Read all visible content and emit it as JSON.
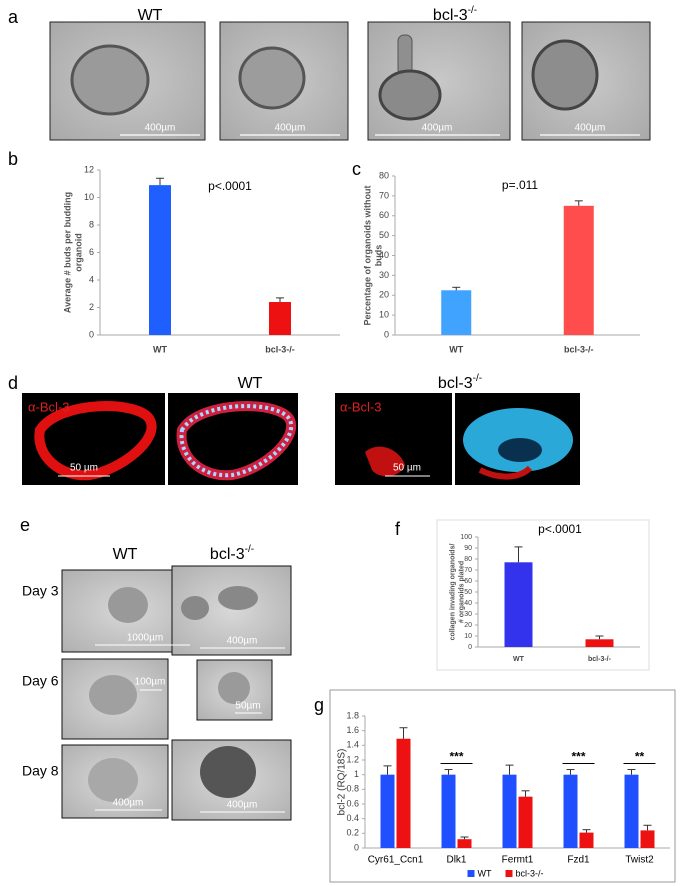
{
  "panel_labels": [
    "a",
    "b",
    "c",
    "d",
    "e",
    "f",
    "g"
  ],
  "panel_a": {
    "headings": [
      {
        "text": "WT"
      },
      {
        "text": "bcl-3",
        "sup": "-/-"
      }
    ],
    "scale_bars": [
      "400µm",
      "400µm",
      "400µm",
      "400µm"
    ]
  },
  "panel_d": {
    "headings": [
      {
        "text": "WT"
      },
      {
        "text": "bcl-3",
        "sup": "-/-"
      }
    ],
    "stain_labels": [
      "α-Bcl-3",
      "α-Bcl-3"
    ],
    "scale_bars": [
      "50 µm",
      "50 µm"
    ]
  },
  "panel_e": {
    "headings": [
      {
        "text": "WT"
      },
      {
        "text": "bcl-3",
        "sup": "-/-"
      }
    ],
    "days": [
      "Day 3",
      "Day 6",
      "Day 8"
    ],
    "scale_bars_wt": [
      "1000µm",
      "100µm",
      "400µm"
    ],
    "scale_bars_ko": [
      "400µm",
      "50µm",
      "400µm"
    ]
  },
  "chart_data": [
    {
      "type": "bar",
      "annotation": "p<.0001",
      "ylabel_lines": [
        "Average # buds per budding",
        "organoid"
      ],
      "categories": [
        "WT",
        "bcl-3-/-"
      ],
      "values": [
        10.9,
        2.4
      ],
      "errors": [
        0.5,
        0.3
      ],
      "colors": [
        "#1f5fff",
        "#ee1111"
      ],
      "ylim": [
        0,
        12
      ],
      "yticks": [
        0,
        2,
        4,
        6,
        8,
        10,
        12
      ]
    },
    {
      "type": "bar",
      "annotation": "p=.011",
      "ylabel_lines": [
        "Percentage of organoids without",
        "buds"
      ],
      "categories": [
        "WT",
        "bcl-3-/-"
      ],
      "values": [
        22.5,
        65
      ],
      "errors": [
        1.5,
        2.5
      ],
      "colors": [
        "#3fa3ff",
        "#ff4d4d"
      ],
      "ylim": [
        0,
        80
      ],
      "yticks": [
        0,
        10,
        20,
        30,
        40,
        50,
        60,
        70,
        80
      ]
    },
    {
      "type": "bar",
      "annotation": "p<.0001",
      "ylabel_lines": [
        "collagen invading organoids/",
        "# organoids plated"
      ],
      "categories": [
        "WT",
        "bcl-3-/-"
      ],
      "values": [
        77,
        7
      ],
      "errors": [
        14,
        3
      ],
      "colors": [
        "#3333ee",
        "#ee1111"
      ],
      "ylim": [
        0,
        100
      ],
      "yticks": [
        0,
        10,
        20,
        30,
        40,
        50,
        60,
        70,
        80,
        90,
        100
      ]
    },
    {
      "type": "grouped_bar",
      "ylabel": "bcl-2 (RQ/18S)",
      "categories": [
        "Cyr61_Ccn1",
        "Dlk1",
        "Fermt1",
        "Fzd1",
        "Twist2"
      ],
      "series": [
        {
          "name": "WT",
          "color": "#1f4fff",
          "values": [
            1,
            1,
            1,
            1,
            1
          ],
          "errors": [
            0.12,
            0.07,
            0.13,
            0.07,
            0.07
          ]
        },
        {
          "name": "bcl-3-/-",
          "color": "#ee1111",
          "values": [
            1.49,
            0.12,
            0.7,
            0.21,
            0.24
          ],
          "errors": [
            0.15,
            0.03,
            0.08,
            0.04,
            0.07
          ]
        }
      ],
      "significance": [
        null,
        "***",
        null,
        "***",
        "**"
      ],
      "ylim": [
        0,
        1.8
      ],
      "yticks": [
        0,
        0.2,
        0.4,
        0.6,
        0.8,
        1,
        1.2,
        1.4,
        1.6,
        1.8
      ],
      "legend": "bottom"
    }
  ]
}
